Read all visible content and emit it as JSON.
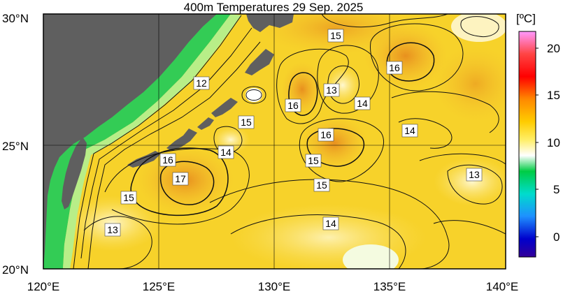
{
  "map": {
    "title": "400m Temperatures  29 Sep. 2025",
    "lat_labels": [
      "30°N",
      "25°N",
      "20°N"
    ],
    "lon_labels": [
      "120°E",
      "125°E",
      "130°E",
      "135°E",
      "140°E"
    ]
  },
  "colorbar": {
    "unit": "[ºC]",
    "ticks": [
      "20",
      "15",
      "10",
      "5",
      "0"
    ],
    "colors": [
      "#ff99ff",
      "#ff0000",
      "#ff7a00",
      "#ffd000",
      "#fff2a0",
      "#ffffff",
      "#00cc55",
      "#00e0d0",
      "#1e90ff",
      "#0000cc",
      "#330099"
    ]
  },
  "contour_labels": [
    "15",
    "16",
    "13",
    "14",
    "12",
    "16",
    "16",
    "15",
    "14",
    "16",
    "15",
    "17",
    "14",
    "15",
    "15",
    "13",
    "14",
    "13"
  ],
  "colors": {
    "land": "#5f5f5f",
    "ocean_base": "#f7d22a",
    "warm_core": "#f0a030",
    "cool_shelf": "#33cc55"
  }
}
